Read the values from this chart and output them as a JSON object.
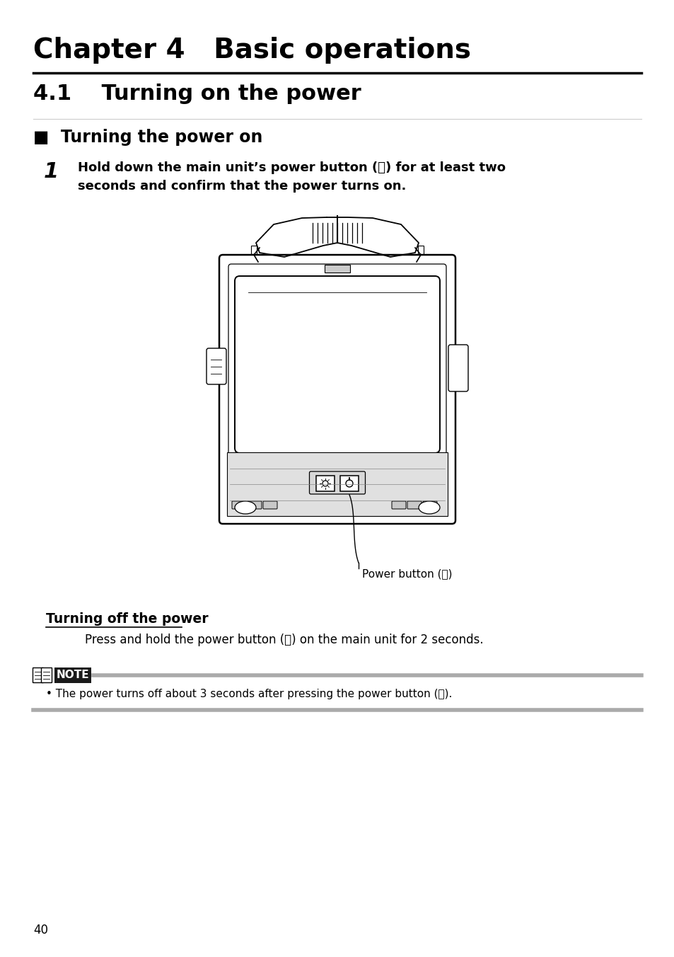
{
  "title": "Chapter 4   Basic operations",
  "section": "4.1    Turning on the power",
  "subsection": "■  Turning the power on",
  "step_number": "1",
  "step_text_line1": "Hold down the main unit’s power button (⏻) for at least two",
  "step_text_line2": "seconds and confirm that the power turns on.",
  "power_button_label": "Power button (⏻)",
  "turn_off_heading": "Turning off the power",
  "turn_off_text": "Press and hold the power button (⏻) on the main unit for 2 seconds.",
  "note_text": "• The power turns off about 3 seconds after pressing the power button (⏻).",
  "page_number": "40",
  "bg_color": "#ffffff",
  "text_color": "#000000",
  "line_color": "#000000",
  "note_bar_color": "#aaaaaa",
  "note_bg_color": "#1a1a1a"
}
